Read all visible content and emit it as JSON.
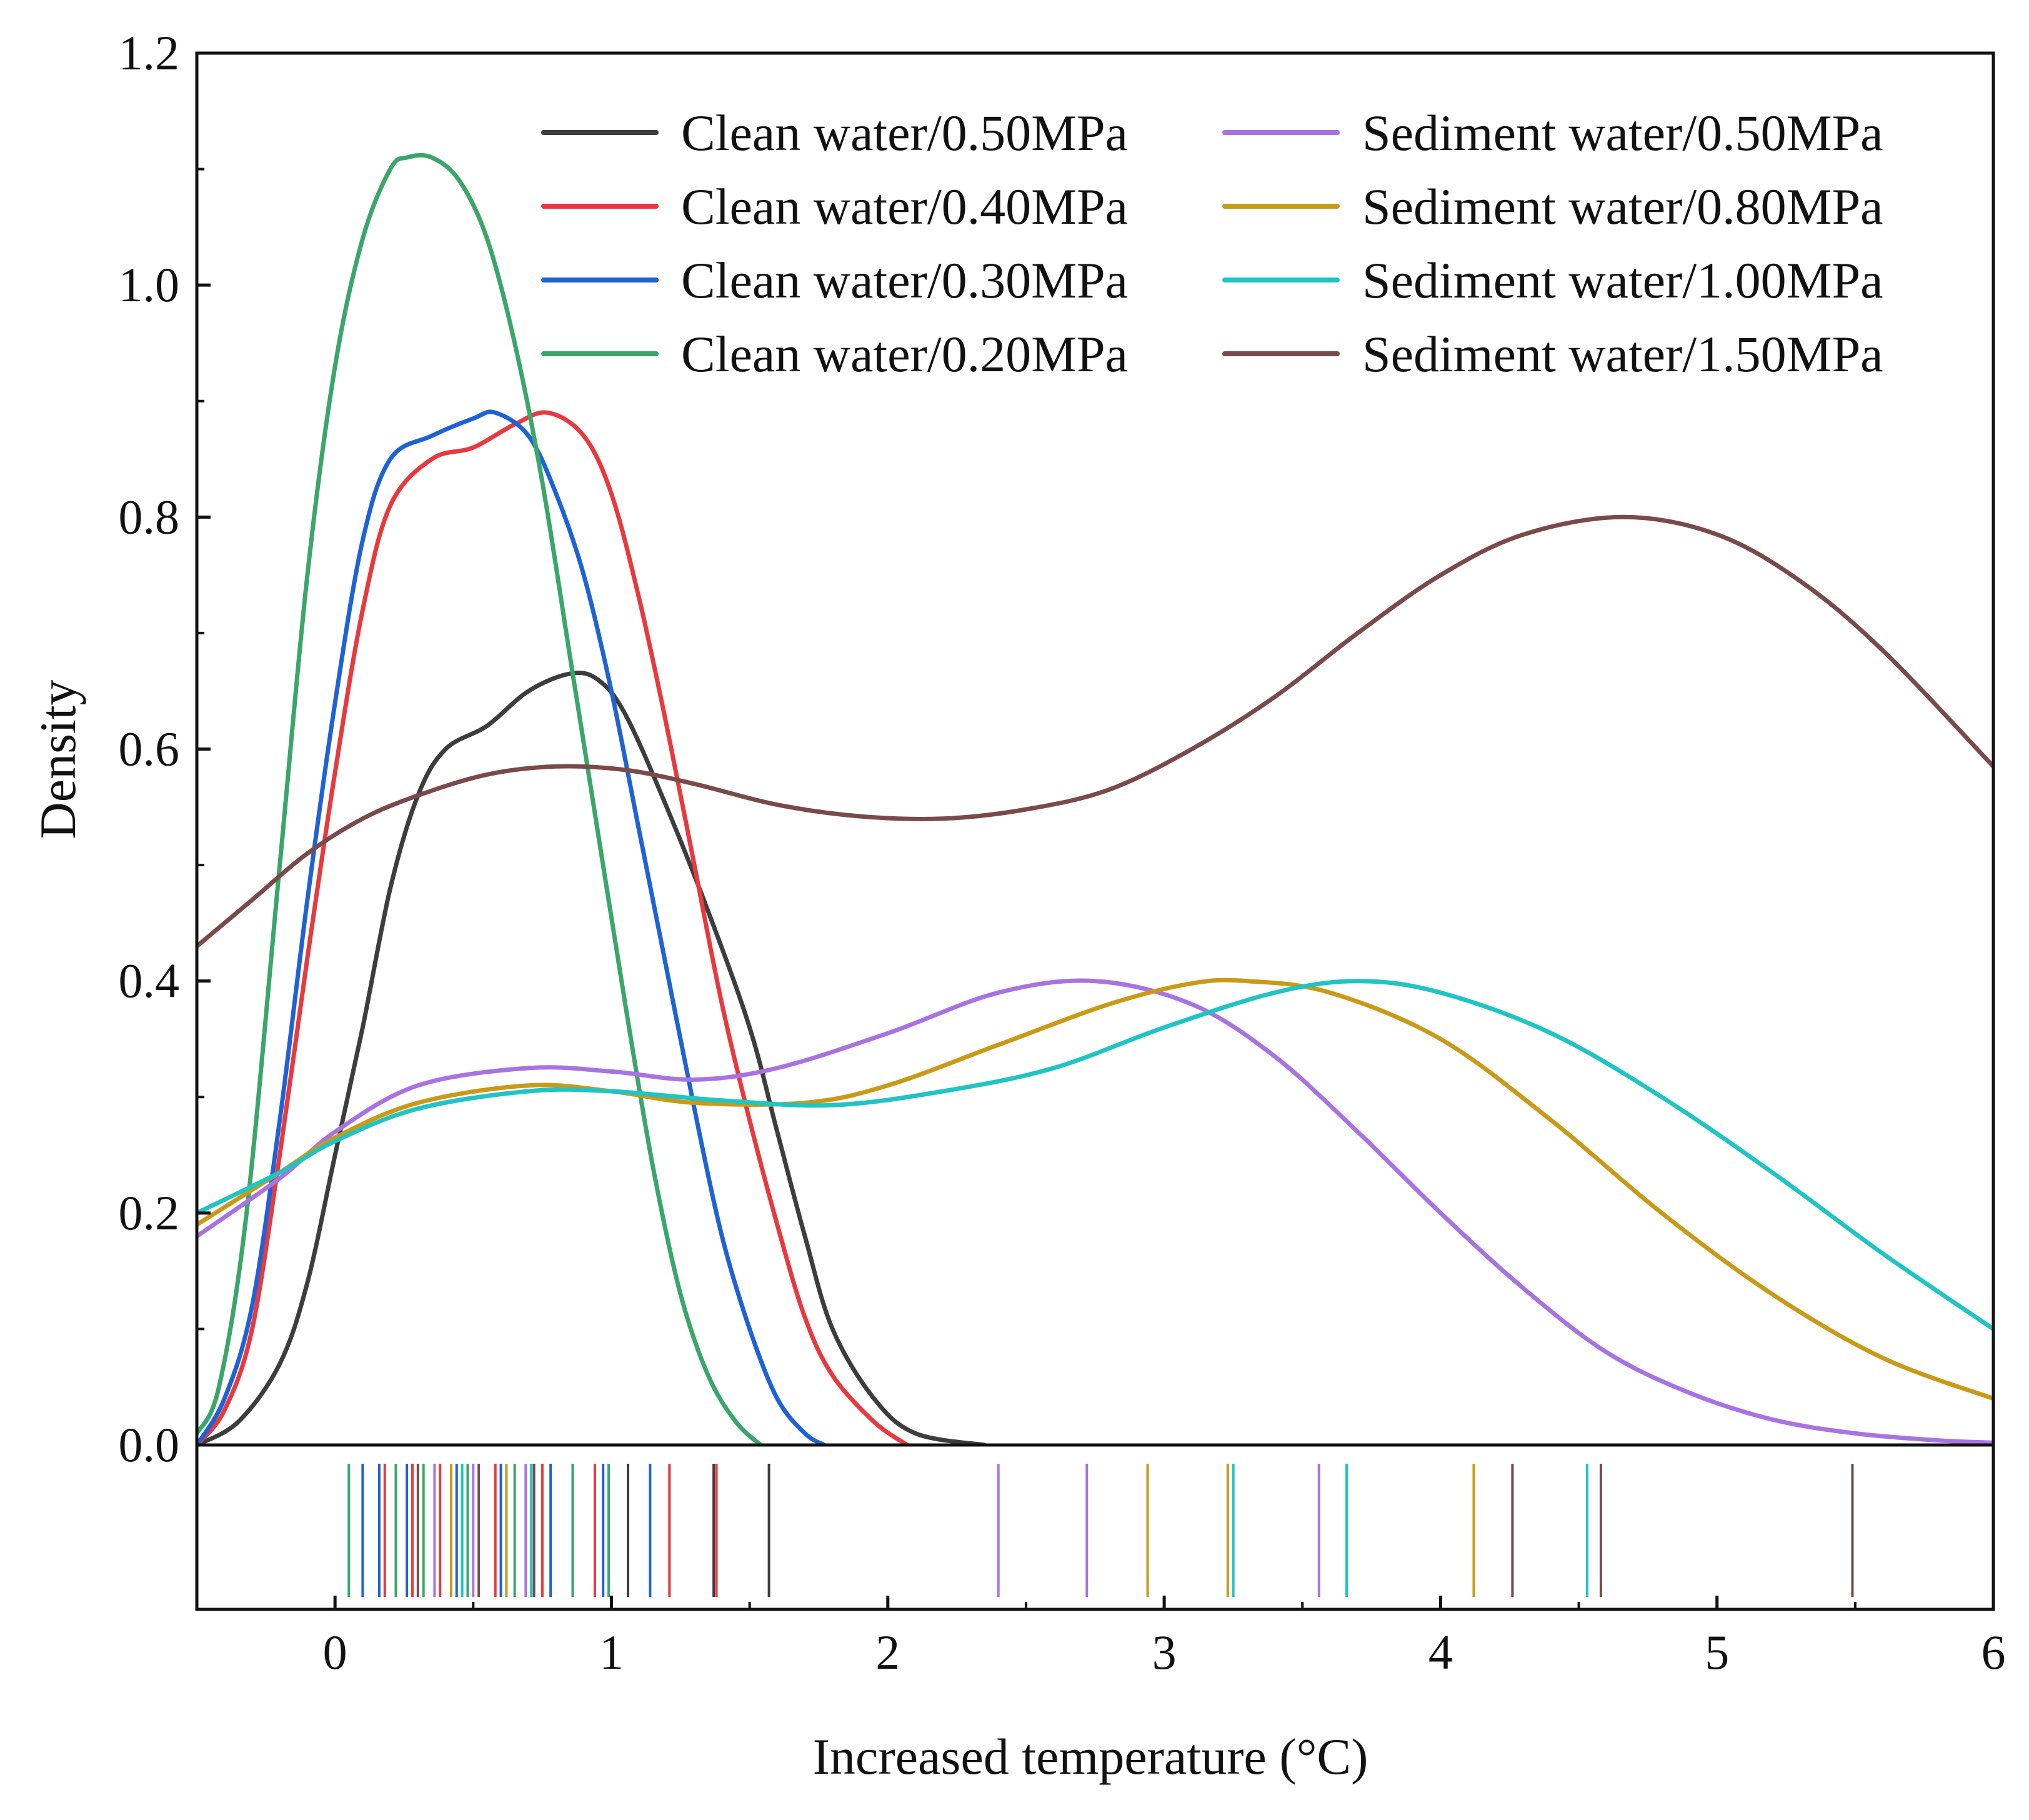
{
  "chart_data": {
    "type": "line",
    "subtype": "kernel density with rug plot",
    "title": "",
    "xlabel": "Increased temperature (°C)",
    "ylabel": "Density",
    "xlim": [
      -0.5,
      6
    ],
    "ylim": [
      0,
      1.2
    ],
    "x_ticks": [
      "0",
      "1",
      "2",
      "3",
      "4",
      "5",
      "6"
    ],
    "x_tick_values": [
      0,
      1,
      2,
      3,
      4,
      5,
      6
    ],
    "y_ticks": [
      "0.0",
      "0.2",
      "0.4",
      "0.6",
      "0.8",
      "1.0",
      "1.2"
    ],
    "y_tick_values": [
      0,
      0.2,
      0.4,
      0.6,
      0.8,
      1.0,
      1.2
    ],
    "legend_position": "top-right",
    "series": [
      {
        "name": "Clean water/0.50MPa",
        "color": "#3d3d3d",
        "points": [
          [
            -0.5,
            0.0
          ],
          [
            -0.35,
            0.02
          ],
          [
            -0.2,
            0.07
          ],
          [
            -0.1,
            0.14
          ],
          [
            0.0,
            0.25
          ],
          [
            0.1,
            0.36
          ],
          [
            0.2,
            0.48
          ],
          [
            0.3,
            0.56
          ],
          [
            0.4,
            0.6
          ],
          [
            0.55,
            0.62
          ],
          [
            0.7,
            0.65
          ],
          [
            0.85,
            0.665
          ],
          [
            0.95,
            0.66
          ],
          [
            1.05,
            0.63
          ],
          [
            1.2,
            0.55
          ],
          [
            1.35,
            0.46
          ],
          [
            1.5,
            0.36
          ],
          [
            1.6,
            0.27
          ],
          [
            1.7,
            0.18
          ],
          [
            1.8,
            0.1
          ],
          [
            1.95,
            0.04
          ],
          [
            2.1,
            0.01
          ],
          [
            2.35,
            0.0
          ]
        ],
        "rug": [
          0.86,
          1.06,
          1.37,
          1.57
        ]
      },
      {
        "name": "Clean water/0.40MPa",
        "color": "#e8393e",
        "points": [
          [
            -0.5,
            0.0
          ],
          [
            -0.4,
            0.03
          ],
          [
            -0.3,
            0.1
          ],
          [
            -0.2,
            0.25
          ],
          [
            -0.1,
            0.42
          ],
          [
            0.0,
            0.58
          ],
          [
            0.1,
            0.72
          ],
          [
            0.2,
            0.81
          ],
          [
            0.35,
            0.85
          ],
          [
            0.5,
            0.86
          ],
          [
            0.65,
            0.88
          ],
          [
            0.77,
            0.89
          ],
          [
            0.9,
            0.87
          ],
          [
            1.0,
            0.82
          ],
          [
            1.1,
            0.73
          ],
          [
            1.2,
            0.62
          ],
          [
            1.3,
            0.5
          ],
          [
            1.4,
            0.38
          ],
          [
            1.5,
            0.28
          ],
          [
            1.6,
            0.19
          ],
          [
            1.7,
            0.11
          ],
          [
            1.8,
            0.06
          ],
          [
            1.95,
            0.02
          ],
          [
            2.07,
            0.0
          ]
        ],
        "rug": [
          0.18,
          0.28,
          0.38,
          0.58,
          0.75,
          0.94,
          1.21,
          1.38
        ]
      },
      {
        "name": "Clean water/0.30MPa",
        "color": "#1f62d6",
        "points": [
          [
            -0.5,
            0.0
          ],
          [
            -0.4,
            0.04
          ],
          [
            -0.3,
            0.12
          ],
          [
            -0.2,
            0.28
          ],
          [
            -0.1,
            0.47
          ],
          [
            0.0,
            0.64
          ],
          [
            0.1,
            0.78
          ],
          [
            0.2,
            0.85
          ],
          [
            0.35,
            0.87
          ],
          [
            0.5,
            0.885
          ],
          [
            0.58,
            0.89
          ],
          [
            0.7,
            0.87
          ],
          [
            0.8,
            0.82
          ],
          [
            0.9,
            0.75
          ],
          [
            1.0,
            0.65
          ],
          [
            1.1,
            0.53
          ],
          [
            1.2,
            0.41
          ],
          [
            1.3,
            0.29
          ],
          [
            1.4,
            0.18
          ],
          [
            1.5,
            0.1
          ],
          [
            1.6,
            0.04
          ],
          [
            1.7,
            0.01
          ],
          [
            1.77,
            0.0
          ]
        ],
        "rug": [
          0.1,
          0.16,
          0.26,
          0.44,
          0.6,
          0.78,
          0.97,
          1.14
        ]
      },
      {
        "name": "Clean water/0.20MPa",
        "color": "#3aa66a",
        "points": [
          [
            -0.5,
            0.01
          ],
          [
            -0.42,
            0.05
          ],
          [
            -0.32,
            0.2
          ],
          [
            -0.2,
            0.5
          ],
          [
            -0.1,
            0.75
          ],
          [
            0.0,
            0.93
          ],
          [
            0.1,
            1.04
          ],
          [
            0.2,
            1.1
          ],
          [
            0.26,
            1.11
          ],
          [
            0.35,
            1.11
          ],
          [
            0.45,
            1.09
          ],
          [
            0.55,
            1.04
          ],
          [
            0.65,
            0.95
          ],
          [
            0.75,
            0.83
          ],
          [
            0.85,
            0.68
          ],
          [
            0.95,
            0.53
          ],
          [
            1.05,
            0.38
          ],
          [
            1.15,
            0.24
          ],
          [
            1.25,
            0.13
          ],
          [
            1.35,
            0.06
          ],
          [
            1.45,
            0.02
          ],
          [
            1.54,
            0.0
          ]
        ],
        "rug": [
          0.05,
          0.22,
          0.32,
          0.48,
          0.65,
          0.86,
          0.99
        ]
      },
      {
        "name": "Sediment water/0.50MPa",
        "color": "#a873e0",
        "points": [
          [
            -0.5,
            0.18
          ],
          [
            -0.2,
            0.23
          ],
          [
            0.0,
            0.27
          ],
          [
            0.3,
            0.31
          ],
          [
            0.7,
            0.325
          ],
          [
            1.0,
            0.322
          ],
          [
            1.3,
            0.315
          ],
          [
            1.6,
            0.325
          ],
          [
            2.0,
            0.355
          ],
          [
            2.4,
            0.39
          ],
          [
            2.75,
            0.4
          ],
          [
            3.1,
            0.38
          ],
          [
            3.4,
            0.335
          ],
          [
            3.7,
            0.27
          ],
          [
            4.0,
            0.2
          ],
          [
            4.3,
            0.135
          ],
          [
            4.6,
            0.08
          ],
          [
            4.9,
            0.045
          ],
          [
            5.2,
            0.022
          ],
          [
            5.5,
            0.01
          ],
          [
            5.8,
            0.004
          ],
          [
            6.0,
            0.002
          ]
        ],
        "rug": [
          0.36,
          0.5,
          0.69,
          2.4,
          2.72,
          3.56
        ]
      },
      {
        "name": "Sediment water/0.80MPa",
        "color": "#c99a16",
        "points": [
          [
            -0.5,
            0.19
          ],
          [
            -0.2,
            0.235
          ],
          [
            0.0,
            0.265
          ],
          [
            0.3,
            0.295
          ],
          [
            0.7,
            0.31
          ],
          [
            1.0,
            0.305
          ],
          [
            1.3,
            0.295
          ],
          [
            1.7,
            0.295
          ],
          [
            2.0,
            0.31
          ],
          [
            2.4,
            0.345
          ],
          [
            2.8,
            0.38
          ],
          [
            3.1,
            0.398
          ],
          [
            3.3,
            0.4
          ],
          [
            3.6,
            0.39
          ],
          [
            4.0,
            0.35
          ],
          [
            4.4,
            0.28
          ],
          [
            4.8,
            0.2
          ],
          [
            5.2,
            0.13
          ],
          [
            5.6,
            0.075
          ],
          [
            6.0,
            0.04
          ]
        ],
        "rug": [
          0.42,
          0.62,
          2.94,
          3.23,
          4.12
        ]
      },
      {
        "name": "Sediment water/1.00MPa",
        "color": "#1fc4c4",
        "points": [
          [
            -0.5,
            0.2
          ],
          [
            -0.2,
            0.235
          ],
          [
            0.0,
            0.262
          ],
          [
            0.3,
            0.29
          ],
          [
            0.7,
            0.305
          ],
          [
            1.0,
            0.305
          ],
          [
            1.4,
            0.297
          ],
          [
            1.8,
            0.293
          ],
          [
            2.2,
            0.305
          ],
          [
            2.6,
            0.325
          ],
          [
            3.0,
            0.36
          ],
          [
            3.4,
            0.39
          ],
          [
            3.7,
            0.4
          ],
          [
            4.0,
            0.39
          ],
          [
            4.4,
            0.355
          ],
          [
            4.8,
            0.3
          ],
          [
            5.2,
            0.235
          ],
          [
            5.6,
            0.165
          ],
          [
            6.0,
            0.1
          ]
        ],
        "rug": [
          0.46,
          0.71,
          3.25,
          3.66,
          4.53
        ]
      },
      {
        "name": "Sediment water/1.50MPa",
        "color": "#7a4a4a",
        "points": [
          [
            -0.5,
            0.43
          ],
          [
            -0.3,
            0.47
          ],
          [
            -0.1,
            0.51
          ],
          [
            0.1,
            0.54
          ],
          [
            0.3,
            0.56
          ],
          [
            0.55,
            0.578
          ],
          [
            0.8,
            0.585
          ],
          [
            1.05,
            0.582
          ],
          [
            1.3,
            0.57
          ],
          [
            1.6,
            0.552
          ],
          [
            1.9,
            0.542
          ],
          [
            2.2,
            0.54
          ],
          [
            2.5,
            0.548
          ],
          [
            2.8,
            0.565
          ],
          [
            3.1,
            0.6
          ],
          [
            3.4,
            0.645
          ],
          [
            3.7,
            0.7
          ],
          [
            4.0,
            0.75
          ],
          [
            4.3,
            0.785
          ],
          [
            4.66,
            0.8
          ],
          [
            5.0,
            0.785
          ],
          [
            5.3,
            0.745
          ],
          [
            5.6,
            0.685
          ],
          [
            6.0,
            0.585
          ]
        ],
        "rug": [
          0.3,
          0.52,
          0.72,
          4.26,
          4.58,
          5.49
        ]
      }
    ]
  }
}
